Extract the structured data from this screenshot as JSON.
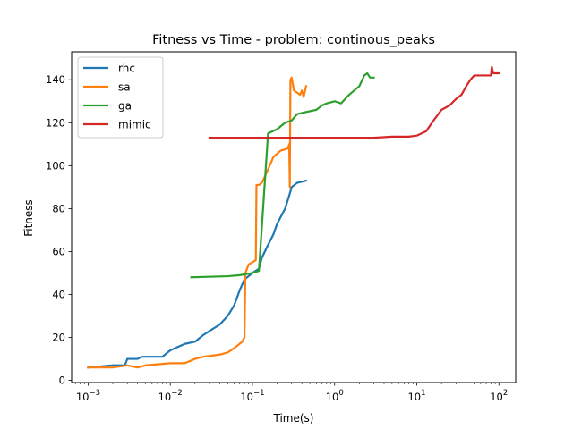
{
  "chart_data": {
    "type": "line",
    "title": "Fitness vs Time - problem: continous_peaks",
    "xlabel": "Time(s)",
    "ylabel": "Fitness",
    "xscale": "log",
    "xlim": [
      0.00063,
      160
    ],
    "ylim": [
      -1,
      153
    ],
    "xticks": [
      {
        "value": 0.001,
        "base": "10",
        "exp": "−3"
      },
      {
        "value": 0.01,
        "base": "10",
        "exp": "−2"
      },
      {
        "value": 0.1,
        "base": "10",
        "exp": "−1"
      },
      {
        "value": 1,
        "base": "10",
        "exp": "0"
      },
      {
        "value": 10,
        "base": "10",
        "exp": "1"
      },
      {
        "value": 100,
        "base": "10",
        "exp": "2"
      }
    ],
    "yticks": [
      0,
      20,
      40,
      60,
      80,
      100,
      120,
      140
    ],
    "grid": false,
    "legend_position": "top-left",
    "series": [
      {
        "name": "rhc",
        "color": "#1f77b4",
        "points": [
          [
            0.001,
            6
          ],
          [
            0.002,
            7
          ],
          [
            0.0028,
            7
          ],
          [
            0.003,
            10
          ],
          [
            0.004,
            10
          ],
          [
            0.0045,
            11
          ],
          [
            0.008,
            11
          ],
          [
            0.01,
            14
          ],
          [
            0.015,
            17
          ],
          [
            0.02,
            18
          ],
          [
            0.025,
            21
          ],
          [
            0.03,
            23
          ],
          [
            0.04,
            26
          ],
          [
            0.05,
            30
          ],
          [
            0.06,
            35
          ],
          [
            0.07,
            42
          ],
          [
            0.08,
            47
          ],
          [
            0.1,
            50
          ],
          [
            0.12,
            52
          ],
          [
            0.13,
            57
          ],
          [
            0.15,
            62
          ],
          [
            0.18,
            68
          ],
          [
            0.2,
            73
          ],
          [
            0.25,
            80
          ],
          [
            0.28,
            86
          ],
          [
            0.3,
            90
          ],
          [
            0.35,
            92
          ],
          [
            0.45,
            93
          ]
        ]
      },
      {
        "name": "sa",
        "color": "#ff7f0e",
        "points": [
          [
            0.001,
            6
          ],
          [
            0.002,
            6
          ],
          [
            0.003,
            7
          ],
          [
            0.004,
            6
          ],
          [
            0.005,
            7
          ],
          [
            0.01,
            8
          ],
          [
            0.015,
            8
          ],
          [
            0.02,
            10
          ],
          [
            0.025,
            11
          ],
          [
            0.04,
            12
          ],
          [
            0.05,
            13
          ],
          [
            0.06,
            15
          ],
          [
            0.075,
            18
          ],
          [
            0.08,
            20
          ],
          [
            0.082,
            50
          ],
          [
            0.09,
            54
          ],
          [
            0.1,
            55
          ],
          [
            0.11,
            56
          ],
          [
            0.112,
            91
          ],
          [
            0.12,
            91
          ],
          [
            0.13,
            92
          ],
          [
            0.15,
            97
          ],
          [
            0.18,
            104
          ],
          [
            0.22,
            107
          ],
          [
            0.27,
            108
          ],
          [
            0.28,
            110
          ],
          [
            0.285,
            90
          ],
          [
            0.29,
            140
          ],
          [
            0.3,
            141
          ],
          [
            0.32,
            135
          ],
          [
            0.35,
            134
          ],
          [
            0.38,
            133
          ],
          [
            0.4,
            135
          ],
          [
            0.42,
            132
          ],
          [
            0.45,
            137
          ]
        ]
      },
      {
        "name": "ga",
        "color": "#2ca02c",
        "points": [
          [
            0.018,
            48
          ],
          [
            0.05,
            48.5
          ],
          [
            0.07,
            49
          ],
          [
            0.1,
            50
          ],
          [
            0.12,
            51
          ],
          [
            0.155,
            115
          ],
          [
            0.2,
            117
          ],
          [
            0.25,
            120
          ],
          [
            0.3,
            121
          ],
          [
            0.35,
            124
          ],
          [
            0.45,
            125
          ],
          [
            0.6,
            126
          ],
          [
            0.7,
            128
          ],
          [
            0.8,
            129
          ],
          [
            1.0,
            130
          ],
          [
            1.2,
            129
          ],
          [
            1.5,
            133
          ],
          [
            2.0,
            137
          ],
          [
            2.3,
            142
          ],
          [
            2.5,
            143
          ],
          [
            2.7,
            141
          ],
          [
            3.0,
            141
          ]
        ]
      },
      {
        "name": "mimic",
        "color": "#d62728",
        "points": [
          [
            0.03,
            113
          ],
          [
            1,
            113
          ],
          [
            3,
            113
          ],
          [
            5,
            113.5
          ],
          [
            8,
            113.5
          ],
          [
            10,
            114
          ],
          [
            13,
            116
          ],
          [
            16,
            121
          ],
          [
            20,
            126
          ],
          [
            25,
            128
          ],
          [
            30,
            131
          ],
          [
            35,
            133
          ],
          [
            40,
            137
          ],
          [
            45,
            140
          ],
          [
            50,
            142
          ],
          [
            70,
            142
          ],
          [
            80,
            142
          ],
          [
            82,
            146
          ],
          [
            85,
            143
          ],
          [
            100,
            143
          ]
        ]
      }
    ]
  }
}
